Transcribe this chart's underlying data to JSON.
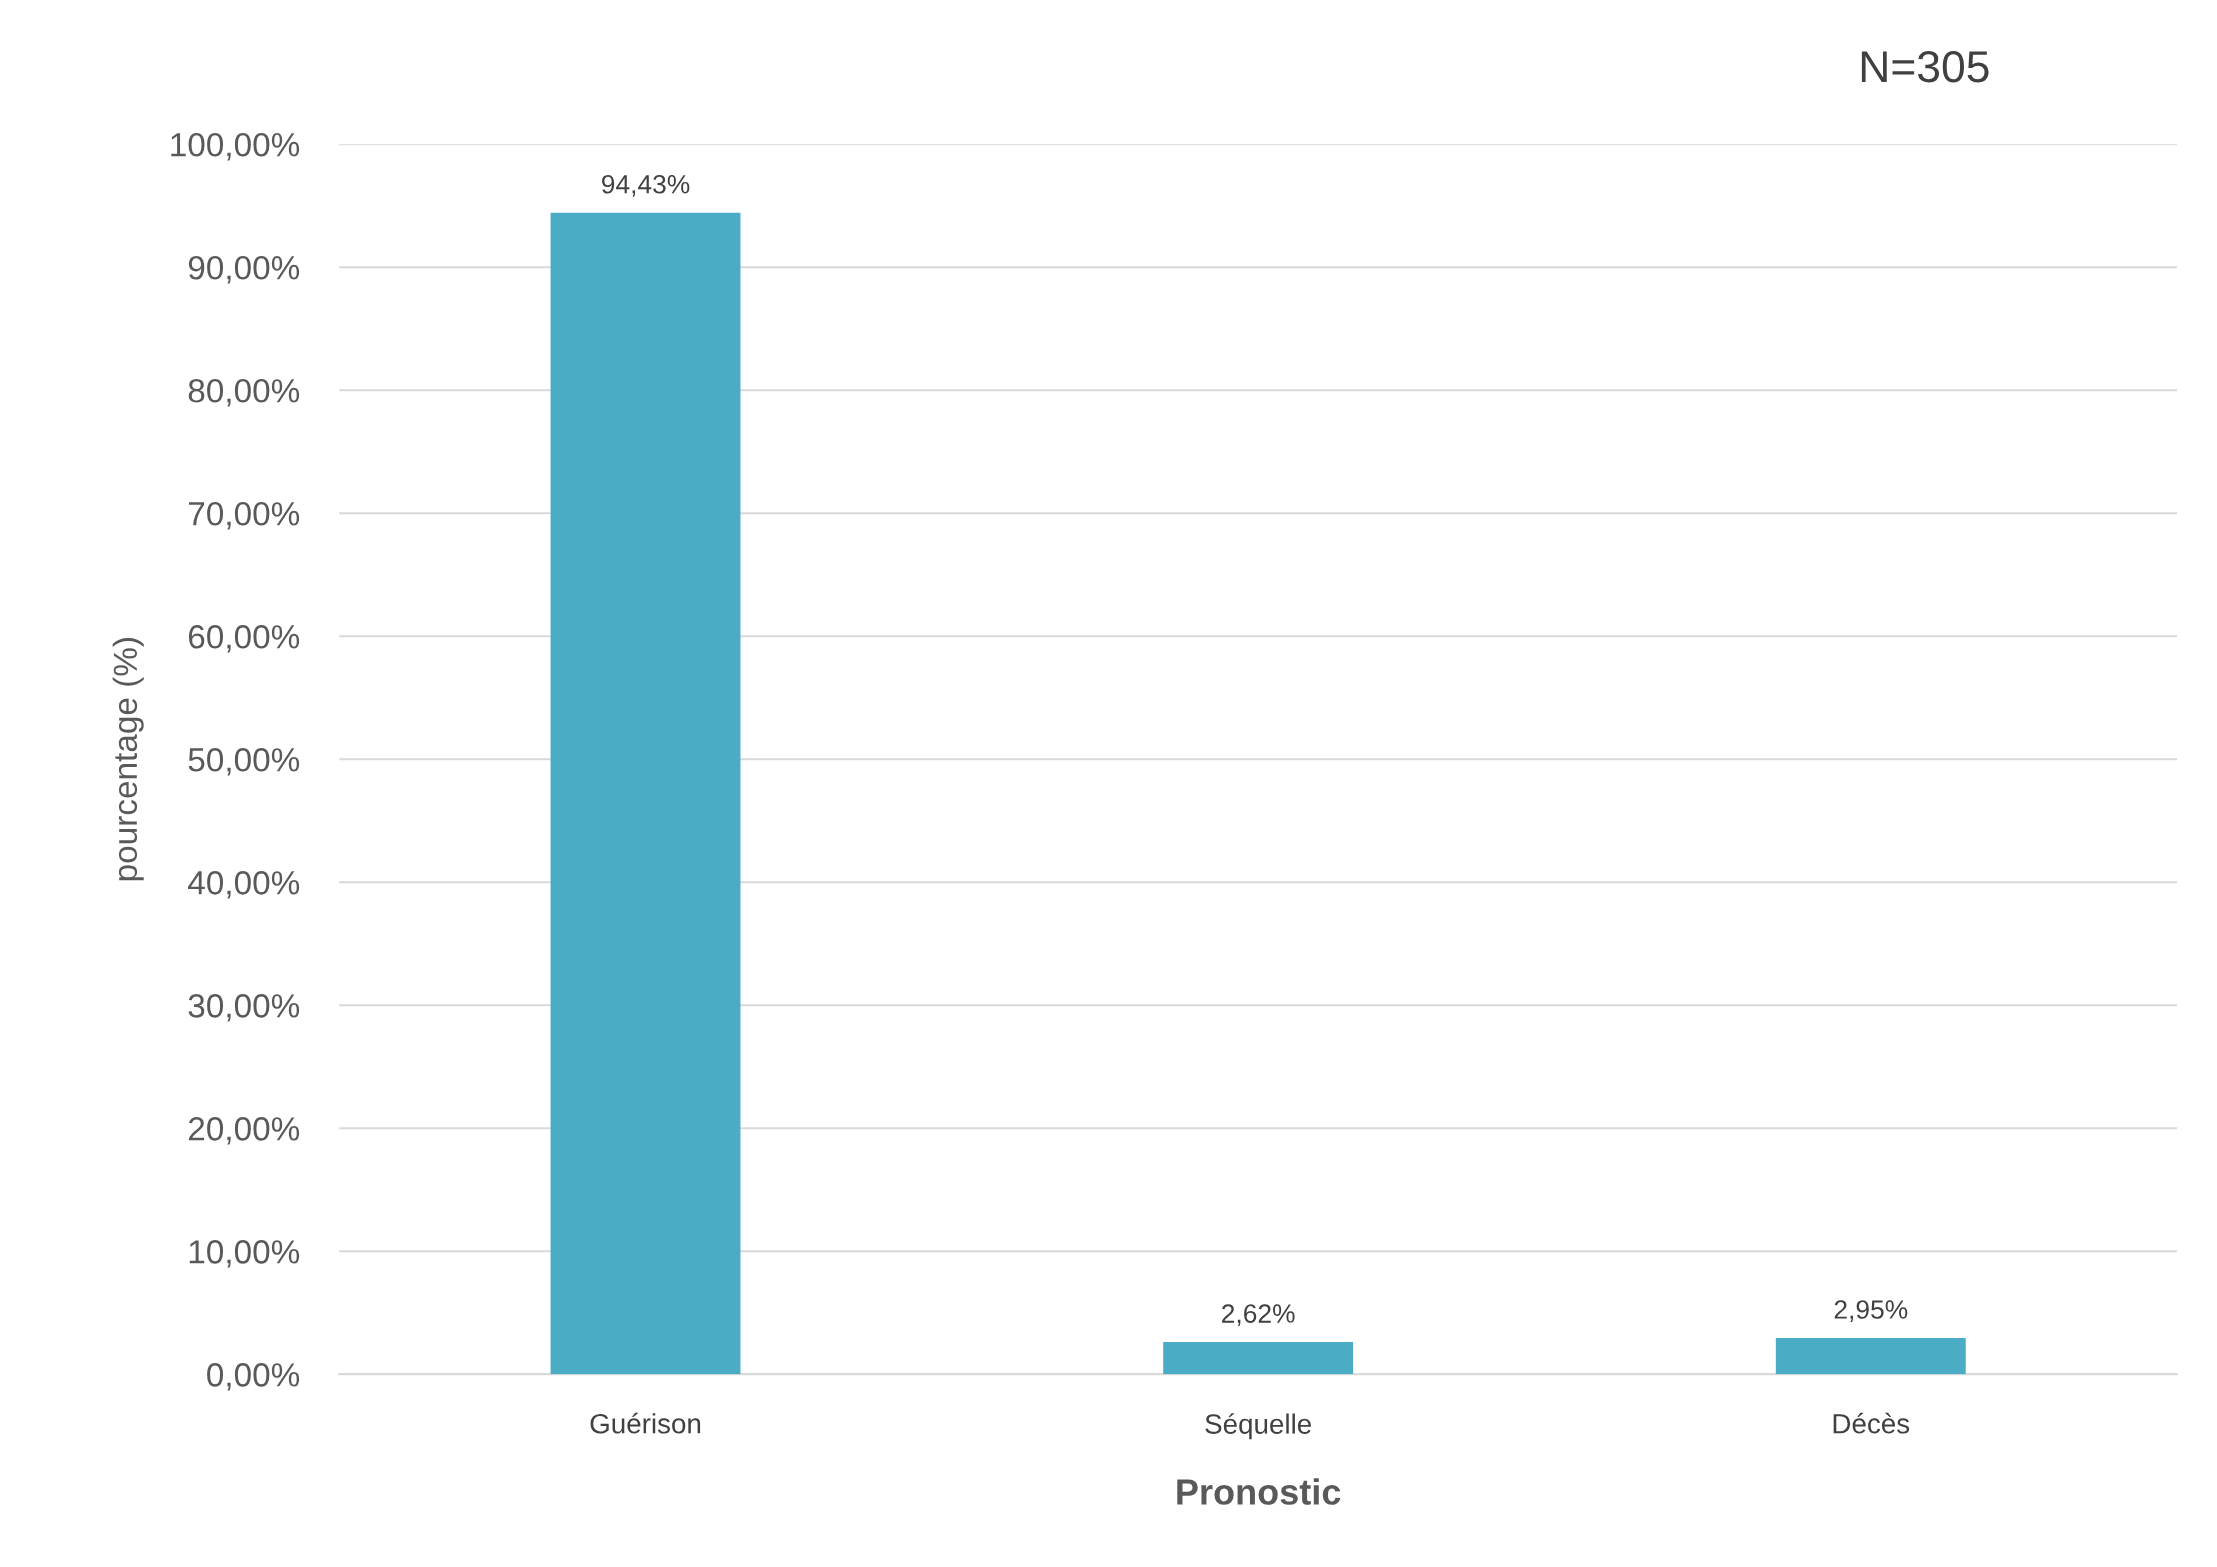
{
  "chart_data": {
    "type": "bar",
    "xlabel": "Pronostic",
    "ylabel": "pourcentage (%)",
    "categories": [
      "Guérison",
      "Séquelle",
      "Décès"
    ],
    "values": [
      94.43,
      2.62,
      2.95
    ],
    "value_labels": [
      "94,43%",
      "2,62%",
      "2,95%"
    ],
    "color": "#4bacc6",
    "ylim": [
      0,
      100
    ],
    "yticks": [
      {
        "value": 0,
        "label": "0,00%"
      },
      {
        "value": 10,
        "label": "10,00%"
      },
      {
        "value": 20,
        "label": "20,00%"
      },
      {
        "value": 30,
        "label": "30,00%"
      },
      {
        "value": 40,
        "label": "40,00%"
      },
      {
        "value": 50,
        "label": "50,00%"
      },
      {
        "value": 60,
        "label": "60,00%"
      },
      {
        "value": 70,
        "label": "70,00%"
      },
      {
        "value": 80,
        "label": "80,00%"
      },
      {
        "value": 90,
        "label": "90,00%"
      },
      {
        "value": 100,
        "label": "100,00%"
      }
    ],
    "grid": "y",
    "annotations": [
      "N=305"
    ]
  }
}
